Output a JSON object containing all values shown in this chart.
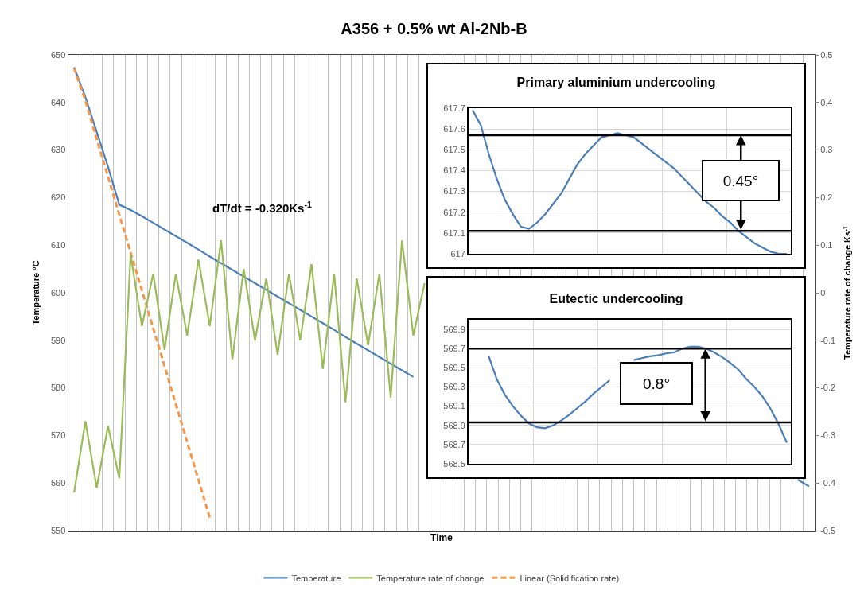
{
  "chart_data": [
    {
      "type": "line",
      "title": "A356 + 0.5% wt Al-2Nb-B",
      "xlabel": "Time",
      "ylabel": "Temperature °C",
      "y2label": "Temperature rate of change Ks$^{-1}$",
      "categories": [
        null,
        null,
        null,
        null,
        null,
        null,
        null,
        null,
        null,
        null,
        null,
        null,
        null,
        null,
        null,
        null,
        null,
        null,
        null,
        null,
        null,
        null,
        null,
        null,
        null,
        null,
        null,
        null,
        null,
        null,
        null,
        null,
        null,
        null,
        null,
        null,
        null,
        null,
        null,
        null,
        null,
        null,
        null,
        null,
        null,
        null,
        null,
        null,
        null,
        null,
        null,
        null,
        null,
        null,
        null,
        null,
        null,
        null,
        null,
        null,
        null,
        null,
        null,
        null,
        null,
        null
      ],
      "series": [
        {
          "name": "Temperature",
          "color": "#4a7ebb",
          "values": [
            647.4,
            641.1,
            633.8,
            626.5,
            618.5,
            617.4,
            616.1,
            614.7,
            613.3,
            611.9,
            610.5,
            609.1,
            607.6,
            606.2,
            604.8,
            603.4,
            602.0,
            600.6,
            599.2,
            597.8,
            596.4,
            595.0,
            593.6,
            592.2,
            590.7,
            589.3,
            587.9,
            586.5,
            585.1,
            583.7,
            582.3,
            null,
            null,
            null,
            null,
            null,
            null,
            null,
            null,
            null,
            null,
            null,
            null,
            null,
            null,
            null,
            null,
            null,
            null,
            null,
            null,
            null,
            null,
            null,
            null,
            null,
            null,
            null,
            null,
            null,
            null,
            null,
            null,
            null,
            560.7,
            559.3
          ]
        },
        {
          "name": "Temperature rate of change",
          "color": "#9bbb59",
          "axis": "y2",
          "values": [
            -0.42,
            -0.27,
            -0.41,
            -0.28,
            -0.39,
            0.08,
            -0.07,
            0.04,
            -0.12,
            0.04,
            -0.09,
            0.07,
            -0.07,
            0.11,
            -0.14,
            0.05,
            -0.1,
            0.03,
            -0.13,
            0.04,
            -0.1,
            0.06,
            -0.16,
            0.04,
            -0.23,
            0.03,
            -0.11,
            0.04,
            -0.22,
            0.11,
            -0.09,
            0.02,
            null,
            null,
            null,
            null,
            null,
            null,
            null,
            null,
            null,
            null,
            null,
            null,
            null,
            null,
            null,
            null,
            null,
            null,
            null,
            null,
            null,
            null,
            null,
            null,
            null,
            null,
            null,
            null,
            null,
            null,
            null,
            null,
            null,
            null
          ]
        },
        {
          "name": "Linear (Solidification rate)",
          "type": "line",
          "line_style": "dashed",
          "color": "#f79646",
          "values": [
            647.2,
            640.4,
            632.3,
            624.4,
            616.4,
            608.5,
            600.5,
            592.5,
            584.6,
            576.6,
            568.6,
            560.7,
            552.7,
            null,
            null,
            null,
            null,
            null,
            null,
            null,
            null,
            null,
            null,
            null,
            null,
            null,
            null,
            null,
            null,
            null,
            null,
            null,
            null,
            null,
            null,
            null,
            null,
            null,
            null,
            null,
            null,
            null,
            null,
            null,
            null,
            null,
            null,
            null,
            null,
            null,
            null,
            null,
            null,
            null,
            null,
            null,
            null,
            null,
            null,
            null,
            null,
            null,
            null,
            null,
            null,
            null
          ]
        }
      ],
      "ylim": [
        550,
        650
      ],
      "yticks": [
        550,
        560,
        570,
        580,
        590,
        600,
        610,
        620,
        630,
        640,
        650
      ],
      "y2lim": [
        -0.5,
        0.5
      ],
      "y2ticks": [
        -0.5,
        -0.4,
        -0.3,
        -0.2,
        -0.1,
        0,
        0.1,
        0.2,
        0.3,
        0.4,
        0.5
      ],
      "annotations": [
        "dT/dt = -0.320Ks$^{-1}$"
      ],
      "grid": "x",
      "legend": "bottom"
    },
    {
      "type": "line",
      "title": "Primary aluminium undercooling",
      "categories": [
        null,
        null,
        null,
        null,
        null,
        null,
        null,
        null,
        null,
        null,
        null,
        null,
        null,
        null,
        null,
        null,
        null,
        null,
        null,
        null,
        null,
        null,
        null,
        null,
        null,
        null,
        null,
        null,
        null,
        null,
        null,
        null,
        null,
        null,
        null,
        null,
        null,
        null,
        null,
        null
      ],
      "series": [
        {
          "color": "#4a7ebb",
          "values": [
            617.69,
            617.62,
            617.48,
            617.36,
            617.26,
            617.19,
            617.13,
            617.12,
            617.15,
            617.19,
            617.24,
            617.29,
            617.36,
            617.43,
            617.48,
            617.52,
            617.56,
            617.57,
            617.58,
            617.57,
            617.56,
            617.53,
            617.5,
            617.47,
            617.44,
            617.41,
            617.37,
            617.33,
            617.29,
            617.25,
            617.22,
            617.18,
            617.15,
            617.11,
            617.08,
            617.05,
            617.03,
            617.01,
            617.0,
            617.0
          ]
        }
      ],
      "ylim": [
        617,
        617.7
      ],
      "yticks": [
        617,
        617.1,
        617.2,
        617.3,
        617.4,
        617.5,
        617.6,
        617.7
      ],
      "ref_lines": [
        {
          "axis": "y",
          "value": 617.57,
          "color": "#000000"
        },
        {
          "axis": "y",
          "value": 617.11,
          "color": "#000000"
        }
      ],
      "annotations": [
        "0.45°"
      ],
      "grid": true,
      "legend": false
    },
    {
      "type": "line",
      "title": "Eutectic undercooling",
      "categories": [
        null,
        null,
        null,
        null,
        null,
        null,
        null,
        null,
        null,
        null,
        null,
        null,
        null,
        null,
        null,
        null,
        null,
        null,
        null,
        null,
        null,
        null,
        null,
        null,
        null,
        null,
        null,
        null,
        null,
        null,
        null,
        null,
        null,
        null,
        null,
        null,
        null,
        null,
        null,
        null
      ],
      "series": [
        {
          "color": "#4a7ebb",
          "values": [
            null,
            null,
            569.62,
            569.38,
            569.22,
            569.1,
            569.0,
            568.92,
            568.88,
            568.87,
            568.9,
            568.95,
            569.01,
            569.08,
            569.15,
            569.23,
            569.3,
            569.37,
            null,
            null,
            569.58,
            569.6,
            569.62,
            569.63,
            569.65,
            569.66,
            569.7,
            569.72,
            569.72,
            569.7,
            569.66,
            569.61,
            569.55,
            569.48,
            569.38,
            569.3,
            569.2,
            569.07,
            568.91,
            568.72
          ]
        }
      ],
      "ylim": [
        568.5,
        570.0
      ],
      "yticks": [
        568.5,
        568.7,
        568.9,
        569.1,
        569.3,
        569.5,
        569.7,
        569.9
      ],
      "ref_lines": [
        {
          "axis": "y",
          "value": 569.7,
          "color": "#000000"
        },
        {
          "axis": "y",
          "value": 568.93,
          "color": "#000000"
        }
      ],
      "annotations": [
        "0.8°"
      ],
      "grid": true,
      "legend": false
    }
  ]
}
